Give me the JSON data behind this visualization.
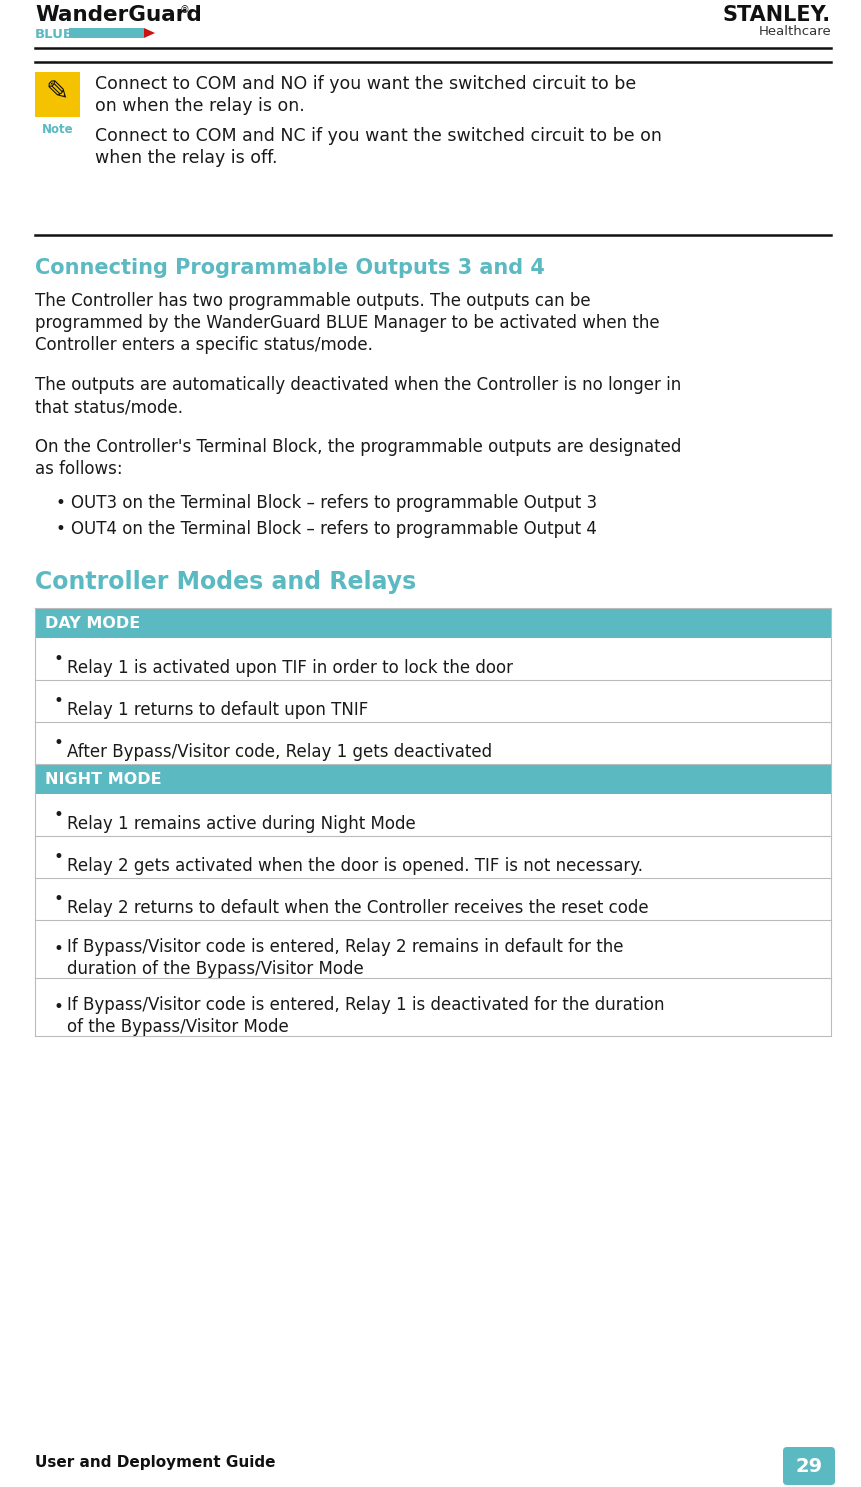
{
  "bg_color": "#ffffff",
  "teal_color": "#5ab9c1",
  "header_line_color": "#1a1a1a",
  "body_text_color": "#1a1a1a",
  "heading_color": "#5ab9c1",
  "table_header_bg": "#5ab9c1",
  "table_header_text": "#ffffff",
  "table_border_color": "#bbbbbb",
  "footer_page_bg": "#5ab9c1",
  "note_icon_bg": "#f5c200",
  "note_text_color": "#1a1a1a",
  "footer_text": "User and Deployment Guide",
  "footer_page": "29",
  "wander_blue": "#5ab9c1",
  "stanley_color": "#1a1a1a",
  "note_line1": "Connect to COM and NO if you want the switched circuit to be",
  "note_line2": "on when the relay is on.",
  "note_line3": "Connect to COM and NC if you want the switched circuit to be on",
  "note_line4": "when the relay is off.",
  "section1_title": "Connecting Programmable Outputs 3 and 4",
  "para1_lines": [
    "The Controller has two programmable outputs. The outputs can be",
    "programmed by the WanderGuard BLUE Manager to be activated when the",
    "Controller enters a specific status/mode."
  ],
  "para2_lines": [
    "The outputs are automatically deactivated when the Controller is no longer in",
    "that status/mode."
  ],
  "para3_lines": [
    "On the Controller's Terminal Block, the programmable outputs are designated",
    "as follows:"
  ],
  "bullet1": "OUT3 on the Terminal Block – refers to programmable Output 3",
  "bullet2": "OUT4 on the Terminal Block – refers to programmable Output 4",
  "section2_title": "Controller Modes and Relays",
  "day_mode_header": "DAY MODE",
  "day_rows": [
    [
      "Relay 1 is activated upon TIF in order to lock the door"
    ],
    [
      "Relay 1 returns to default upon TNIF"
    ],
    [
      "After Bypass/Visitor code, Relay 1 gets deactivated"
    ]
  ],
  "night_mode_header": "NIGHT MODE",
  "night_rows": [
    [
      "Relay 1 remains active during Night Mode"
    ],
    [
      "Relay 2 gets activated when the door is opened. TIF is not necessary."
    ],
    [
      "Relay 2 returns to default when the Controller receives the reset code"
    ],
    [
      "If Bypass/Visitor code is entered, Relay 2 remains in default for the",
      "duration of the Bypass/Visitor Mode"
    ],
    [
      "If Bypass/Visitor code is entered, Relay 1 is deactivated for the duration",
      "of the Bypass/Visitor Mode"
    ]
  ]
}
